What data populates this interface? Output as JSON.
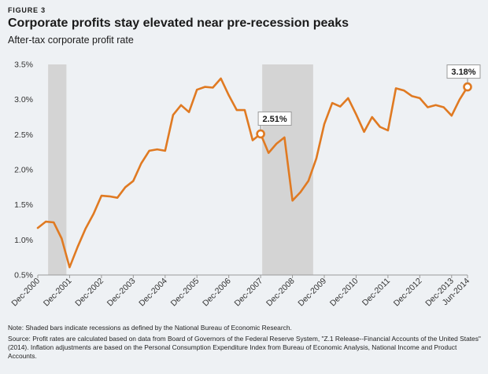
{
  "figure_label": "FIGURE 3",
  "title": "Corporate profits stay elevated near pre-recession peaks",
  "subtitle": "After-tax corporate profit rate",
  "note": "Note: Shaded bars indicate recessions as defined by the National Bureau of Economic Research.",
  "source": "Source: Profit rates are calculated based on data from Board of Governors of the Federal Reserve System, \"Z.1 Release--Financial Accounts of the United States\" (2014). Inflation adjustments are based on the Personal Consumption Expenditure Index from Bureau of Economic Analysis, National Income and Product Accounts.",
  "colors": {
    "line": "#e07a22",
    "recession": "#d4d4d4",
    "axis": "#9a9a9a",
    "background": "#eef1f4"
  },
  "chart_data": {
    "type": "line",
    "title": "Corporate profits stay elevated near pre-recession peaks",
    "ylabel": "After-tax corporate profit rate",
    "xlabel": "",
    "ylim": [
      0.5,
      3.5
    ],
    "yticks": [
      "0.5%",
      "1.0%",
      "1.5%",
      "2.0%",
      "2.5%",
      "3.0%",
      "3.5%"
    ],
    "ytick_values": [
      0.5,
      1.0,
      1.5,
      2.0,
      2.5,
      3.0,
      3.5
    ],
    "xticks": [
      "Dec-2000",
      "Dec-2001",
      "Dec-2002",
      "Dec-2003",
      "Dec-2004",
      "Dec-2005",
      "Dec-2006",
      "Dec-2007",
      "Dec-2008",
      "Dec-2009",
      "Dec-2010",
      "Dec-2011",
      "Dec-2012",
      "Dec-2013",
      "Jun-2014"
    ],
    "xtick_quarters": [
      0,
      4,
      8,
      12,
      16,
      20,
      24,
      28,
      32,
      36,
      40,
      44,
      48,
      52,
      54
    ],
    "recessions": [
      [
        1.3,
        3.6
      ],
      [
        28.2,
        34.6
      ]
    ],
    "grid": false,
    "series": [
      {
        "x": [
          0,
          1,
          2,
          3,
          4,
          5,
          6,
          7,
          8,
          9,
          10,
          11,
          12,
          13,
          14,
          15,
          16,
          17,
          18,
          19,
          20,
          21,
          22,
          23,
          24,
          25,
          26,
          27,
          28,
          29,
          30,
          31,
          32,
          33,
          34,
          35,
          36,
          37,
          38,
          39,
          40,
          41,
          42,
          43,
          44,
          45,
          46,
          47,
          48,
          49,
          50,
          51,
          52,
          53,
          54
        ],
        "values": [
          1.17,
          1.26,
          1.25,
          1.02,
          0.61,
          0.9,
          1.16,
          1.37,
          1.63,
          1.62,
          1.6,
          1.75,
          1.84,
          2.09,
          2.27,
          2.29,
          2.27,
          2.78,
          2.92,
          2.82,
          3.14,
          3.18,
          3.17,
          3.3,
          3.06,
          2.85,
          2.85,
          2.42,
          2.51,
          2.24,
          2.37,
          2.46,
          1.56,
          1.68,
          1.84,
          2.16,
          2.65,
          2.95,
          2.9,
          3.02,
          2.79,
          2.54,
          2.75,
          2.61,
          2.56,
          3.16,
          3.13,
          3.05,
          3.02,
          2.89,
          2.92,
          2.89,
          2.77,
          3.0,
          3.18
        ]
      }
    ],
    "callouts": [
      {
        "label": "2.51%",
        "quarter": 28,
        "value": 2.51
      },
      {
        "label": "3.18%",
        "quarter": 54,
        "value": 3.18
      }
    ]
  }
}
